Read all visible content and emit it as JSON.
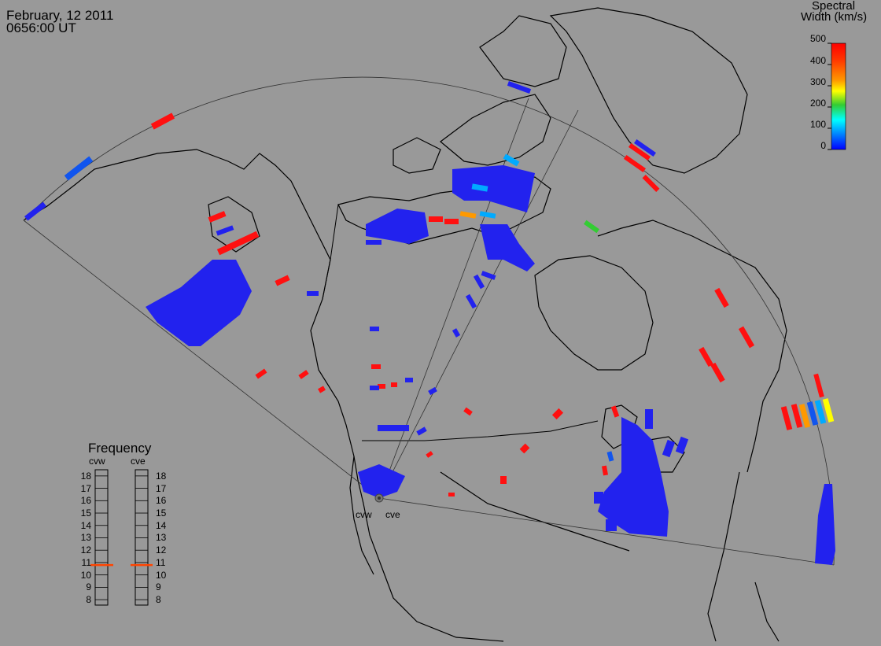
{
  "header": {
    "date": "February, 12 2011",
    "time": "0656:00 UT"
  },
  "colorbar": {
    "title_line1": "Spectral",
    "title_line2": "Width (km/s)",
    "ticks": [
      "500",
      "400",
      "300",
      "200",
      "100",
      "0"
    ],
    "colors": [
      "#ff0000",
      "#ff9900",
      "#ffff00",
      "#33cc33",
      "#00ffff",
      "#0044ff",
      "#0000ff"
    ]
  },
  "frequency_panel": {
    "title": "Frequency",
    "radar_labels": [
      "cvw",
      "cve"
    ],
    "ticks": [
      "18",
      "17",
      "16",
      "15",
      "14",
      "13",
      "12",
      "11",
      "10",
      "9",
      "8"
    ],
    "cvw_value": 10.8,
    "cve_value": 10.8,
    "marker_color": "#ff4400"
  },
  "radars": {
    "west_label": "cvw",
    "east_label": "cve"
  },
  "map": {
    "background": "#999999",
    "scatter_blue": "#2222ee",
    "scatter_red": "#ff1010"
  }
}
